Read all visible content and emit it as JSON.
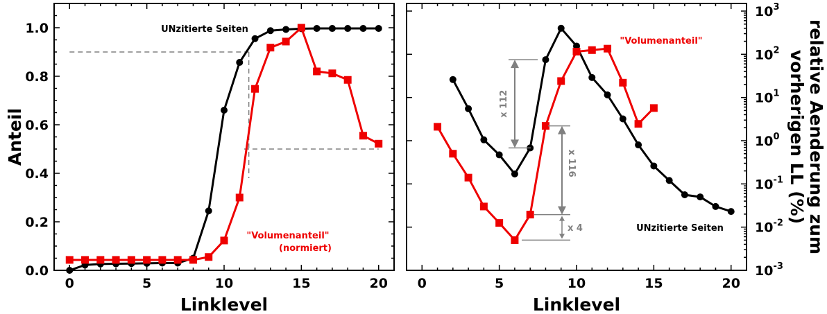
{
  "colors": {
    "black_series": "#000000",
    "red_series": "#ee0000",
    "guide": "#808080"
  },
  "chart_data": [
    {
      "type": "line",
      "xlabel": "Linklevel",
      "ylabel": "Anteil",
      "xlim": [
        -1,
        21
      ],
      "ylim": [
        0,
        1.1
      ],
      "xticks": [
        "0",
        "5",
        "10",
        "15",
        "20"
      ],
      "yticks": [
        "0.0",
        "0.2",
        "0.4",
        "0.6",
        "0.8",
        "1.0"
      ],
      "series": [
        {
          "name": "UNzitierte Seiten",
          "color": "#000000",
          "marker": "circle",
          "x": [
            0,
            1,
            2,
            3,
            4,
            5,
            6,
            7,
            8,
            9,
            10,
            11,
            12,
            13,
            14,
            15,
            16,
            17,
            18,
            19,
            20
          ],
          "y": [
            0.0,
            0.022,
            0.026,
            0.027,
            0.028,
            0.029,
            0.03,
            0.03,
            0.05,
            0.245,
            0.66,
            0.857,
            0.955,
            0.988,
            0.993,
            0.996,
            0.997,
            0.997,
            0.997,
            0.997,
            0.997
          ]
        },
        {
          "name": "\"Volumenanteil\" (normiert)",
          "color": "#ee0000",
          "marker": "square",
          "x": [
            0,
            1,
            2,
            3,
            4,
            5,
            6,
            7,
            8,
            9,
            10,
            11,
            12,
            13,
            14,
            15,
            16,
            17,
            18,
            19,
            20
          ],
          "y": [
            0.043,
            0.043,
            0.043,
            0.043,
            0.043,
            0.043,
            0.043,
            0.043,
            0.043,
            0.055,
            0.123,
            0.3,
            0.748,
            0.918,
            0.943,
            1.0,
            0.82,
            0.812,
            0.785,
            0.555,
            0.522
          ]
        }
      ],
      "annotations": {
        "black_label": "UNzitierte Seiten",
        "red_label_line1": "\"Volumenanteil\"",
        "red_label_line2": "(normiert)"
      },
      "reference_lines": [
        {
          "orientation": "horizontal",
          "y": 0.9,
          "x_from": 0,
          "x_to": 11.6
        },
        {
          "orientation": "horizontal",
          "y": 0.5,
          "x_from": 11.3,
          "x_to": 20
        },
        {
          "orientation": "vertical",
          "x": 11.6,
          "y_from": 0.9,
          "y_to": 0.38
        }
      ]
    },
    {
      "type": "line",
      "xlabel": "Linklevel",
      "ylabel": "relative Aenderung zum vorherigen LL (%)",
      "yscale": "log",
      "xlim": [
        -1,
        21
      ],
      "ylim": [
        0.001,
        1500
      ],
      "xticks": [
        "0",
        "5",
        "10",
        "15",
        "20"
      ],
      "yticks": [
        "10-3",
        "10-2",
        "10-1",
        "100",
        "101",
        "102",
        "103"
      ],
      "series": [
        {
          "name": "UNzitierte Seiten",
          "color": "#000000",
          "marker": "circle",
          "x": [
            2,
            3,
            4,
            5,
            6,
            7,
            8,
            9,
            10,
            11,
            12,
            13,
            14,
            15,
            16,
            17,
            18,
            19,
            20
          ],
          "y": [
            26,
            5.5,
            1.05,
            0.47,
            0.17,
            0.68,
            75,
            400,
            155,
            29,
            11.5,
            3.2,
            0.8,
            0.26,
            0.12,
            0.056,
            0.05,
            0.03,
            0.023
          ]
        },
        {
          "name": "\"Volumenanteil\"",
          "color": "#ee0000",
          "marker": "square",
          "x": [
            1,
            2,
            3,
            4,
            5,
            6,
            7,
            8,
            9,
            10,
            11,
            12,
            13,
            14,
            15
          ],
          "y": [
            2.1,
            0.5,
            0.14,
            0.03,
            0.0125,
            0.005,
            0.0195,
            2.2,
            24,
            115,
            125,
            135,
            22,
            2.45,
            5.7
          ]
        }
      ],
      "annotations": {
        "black_label": "UNzitierte Seiten",
        "red_label": "\"Volumenanteil\""
      },
      "factor_labels": [
        "x 112",
        "x 116",
        "x 4"
      ]
    }
  ]
}
